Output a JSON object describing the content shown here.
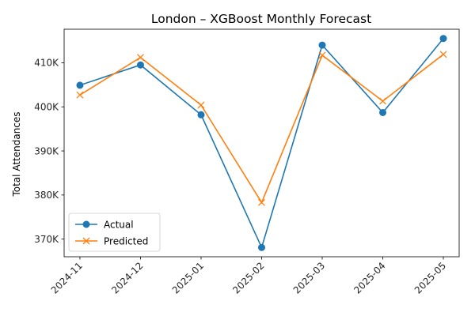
{
  "chart_data": {
    "type": "line",
    "title": "London – XGBoost Monthly Forecast",
    "xlabel": "",
    "ylabel": "Total Attendances",
    "categories": [
      "2024-11",
      "2024-12",
      "2025-01",
      "2025-02",
      "2025-03",
      "2025-04",
      "2025-05"
    ],
    "ylim": [
      366000,
      417600
    ],
    "yticks": [
      370000,
      380000,
      390000,
      400000,
      410000
    ],
    "ytick_labels": [
      "370K",
      "380K",
      "390K",
      "400K",
      "410K"
    ],
    "legend_position": "lower-left",
    "grid": false,
    "series": [
      {
        "name": "Actual",
        "marker": "circle",
        "color": "#1f77b4",
        "values": [
          404900,
          409500,
          398200,
          368100,
          414000,
          398700,
          415500
        ]
      },
      {
        "name": "Predicted",
        "marker": "x",
        "color": "#ff7f0e",
        "values": [
          402700,
          411200,
          400400,
          378300,
          411700,
          401300,
          411900
        ]
      }
    ]
  }
}
